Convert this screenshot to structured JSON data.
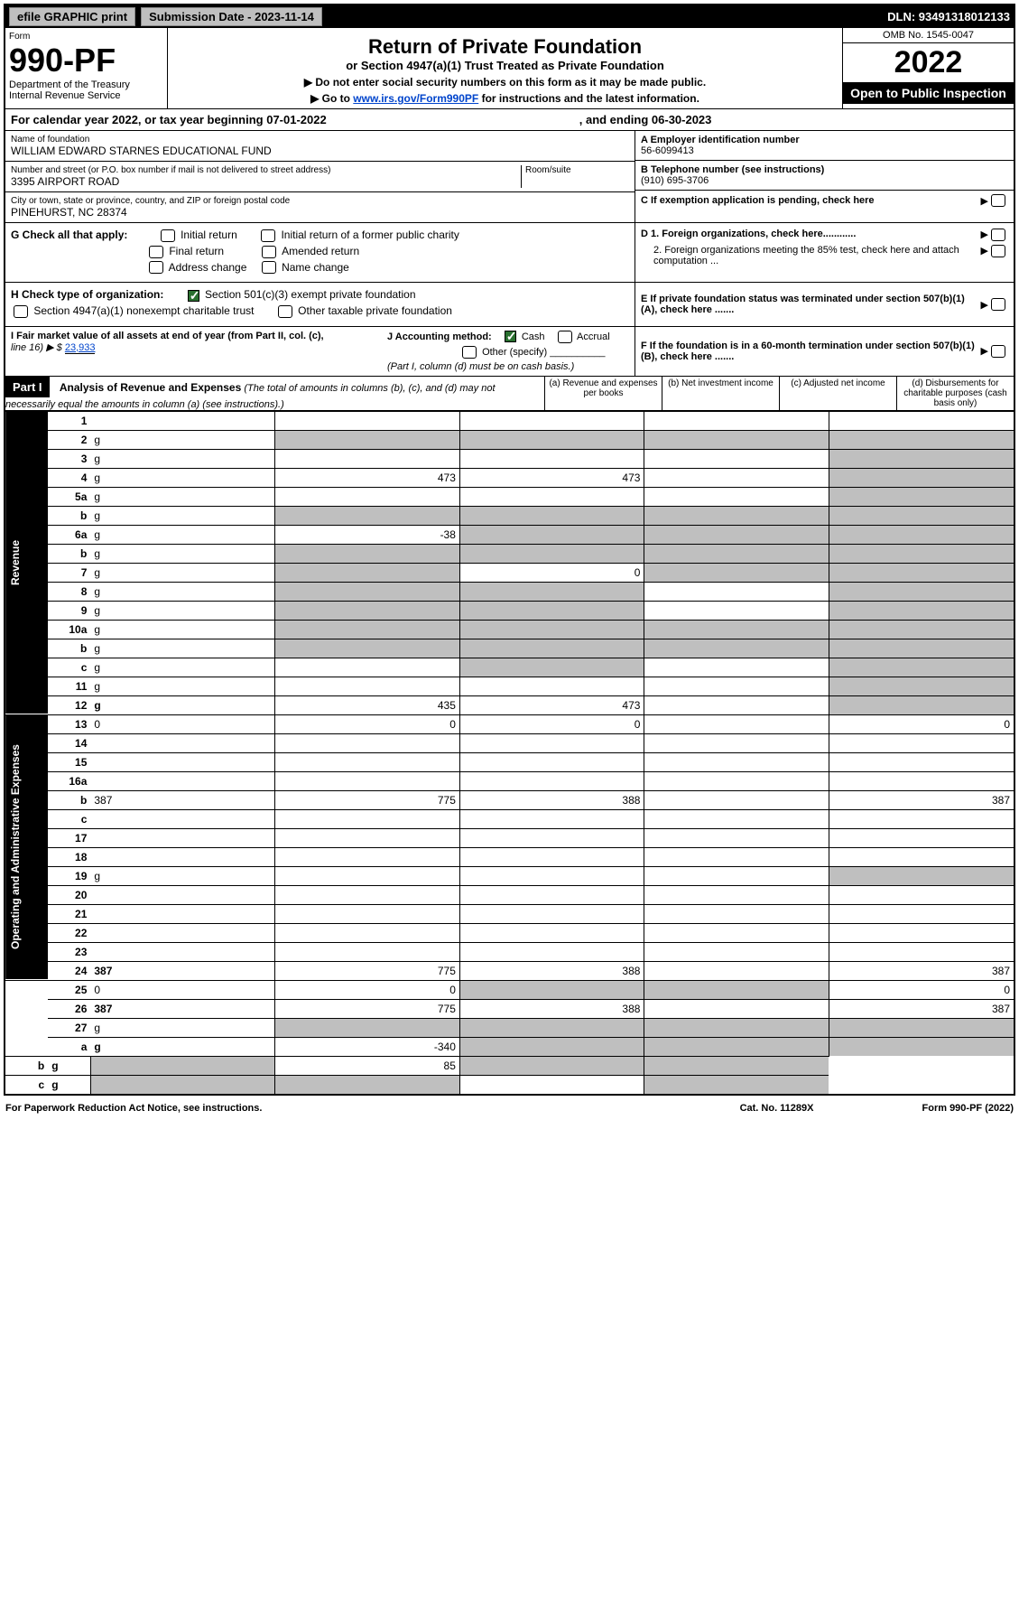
{
  "topbar": {
    "efile": "efile GRAPHIC print",
    "submission": "Submission Date - 2023-11-14",
    "dln": "DLN: 93491318012133"
  },
  "header": {
    "form_label": "Form",
    "form_num": "990-PF",
    "dept": "Department of the Treasury",
    "irs": "Internal Revenue Service",
    "title": "Return of Private Foundation",
    "subtitle": "or Section 4947(a)(1) Trust Treated as Private Foundation",
    "note1": "▶ Do not enter social security numbers on this form as it may be made public.",
    "note2_pre": "▶ Go to ",
    "note2_link": "www.irs.gov/Form990PF",
    "note2_post": " for instructions and the latest information.",
    "omb": "OMB No. 1545-0047",
    "year": "2022",
    "open": "Open to Public Inspection"
  },
  "calyear": {
    "text1": "For calendar year 2022, or tax year beginning 07-01-2022",
    "text2": ", and ending 06-30-2023"
  },
  "info": {
    "name_label": "Name of foundation",
    "name": "WILLIAM EDWARD STARNES EDUCATIONAL FUND",
    "addr_label": "Number and street (or P.O. box number if mail is not delivered to street address)",
    "addr": "3395 AIRPORT ROAD",
    "room_label": "Room/suite",
    "city_label": "City or town, state or province, country, and ZIP or foreign postal code",
    "city": "PINEHURST, NC  28374",
    "a_label": "A Employer identification number",
    "a_val": "56-6099413",
    "b_label": "B Telephone number (see instructions)",
    "b_val": "(910) 695-3706",
    "c_label": "C If exemption application is pending, check here"
  },
  "g": {
    "label": "G Check all that apply:",
    "opts": [
      "Initial return",
      "Initial return of a former public charity",
      "Final return",
      "Amended return",
      "Address change",
      "Name change"
    ]
  },
  "d": {
    "d1": "D 1. Foreign organizations, check here............",
    "d2": "2. Foreign organizations meeting the 85% test, check here and attach computation ..."
  },
  "h": {
    "label": "H Check type of organization:",
    "opt1": "Section 501(c)(3) exempt private foundation",
    "opt2": "Section 4947(a)(1) nonexempt charitable trust",
    "opt3": "Other taxable private foundation"
  },
  "e": {
    "text": "E If private foundation status was terminated under section 507(b)(1)(A), check here ......."
  },
  "i": {
    "label": "I Fair market value of all assets at end of year (from Part II, col. (c),",
    "line16": "line 16) ▶ $ ",
    "val": "23,933"
  },
  "j": {
    "label": "J Accounting method:",
    "cash": "Cash",
    "accrual": "Accrual",
    "other": "Other (specify)",
    "note": "(Part I, column (d) must be on cash basis.)"
  },
  "f": {
    "text": "F If the foundation is in a 60-month termination under section 507(b)(1)(B), check here ......."
  },
  "part1": {
    "label": "Part I",
    "title": "Analysis of Revenue and Expenses",
    "sub": " (The total of amounts in columns (b), (c), and (d) may not necessarily equal the amounts in column (a) (see instructions).)",
    "col_a": "(a)   Revenue and expenses per books",
    "col_b": "(b)   Net investment income",
    "col_c": "(c)   Adjusted net income",
    "col_d": "(d)   Disbursements for charitable purposes (cash basis only)"
  },
  "sidelabels": {
    "revenue": "Revenue",
    "expenses": "Operating and Administrative Expenses"
  },
  "lines": [
    {
      "n": "1",
      "d": "",
      "a": "",
      "b": "",
      "c": "",
      "dg": true
    },
    {
      "n": "2",
      "d": "g",
      "a": "g",
      "b": "g",
      "c": "g"
    },
    {
      "n": "3",
      "d": "g",
      "a": "",
      "b": "",
      "c": ""
    },
    {
      "n": "4",
      "d": "g",
      "a": "473",
      "b": "473",
      "c": ""
    },
    {
      "n": "5a",
      "d": "g",
      "a": "",
      "b": "",
      "c": ""
    },
    {
      "n": "b",
      "d": "g",
      "a": "g",
      "b": "g",
      "c": "g"
    },
    {
      "n": "6a",
      "d": "g",
      "a": "-38",
      "b": "g",
      "c": "g"
    },
    {
      "n": "b",
      "d": "g",
      "a": "g",
      "b": "g",
      "c": "g"
    },
    {
      "n": "7",
      "d": "g",
      "a": "g",
      "b": "0",
      "c": "g"
    },
    {
      "n": "8",
      "d": "g",
      "a": "g",
      "b": "g",
      "c": ""
    },
    {
      "n": "9",
      "d": "g",
      "a": "g",
      "b": "g",
      "c": ""
    },
    {
      "n": "10a",
      "d": "g",
      "a": "g",
      "b": "g",
      "c": "g"
    },
    {
      "n": "b",
      "d": "g",
      "a": "g",
      "b": "g",
      "c": "g"
    },
    {
      "n": "c",
      "d": "g",
      "a": "",
      "b": "g",
      "c": ""
    },
    {
      "n": "11",
      "d": "g",
      "a": "",
      "b": "",
      "c": ""
    },
    {
      "n": "12",
      "d": "g",
      "bold": true,
      "a": "435",
      "b": "473",
      "c": ""
    },
    {
      "n": "13",
      "d": "0",
      "a": "0",
      "b": "0",
      "c": ""
    },
    {
      "n": "14",
      "d": "",
      "a": "",
      "b": "",
      "c": ""
    },
    {
      "n": "15",
      "d": "",
      "a": "",
      "b": "",
      "c": ""
    },
    {
      "n": "16a",
      "d": "",
      "a": "",
      "b": "",
      "c": ""
    },
    {
      "n": "b",
      "d": "387",
      "a": "775",
      "b": "388",
      "c": ""
    },
    {
      "n": "c",
      "d": "",
      "a": "",
      "b": "",
      "c": ""
    },
    {
      "n": "17",
      "d": "",
      "a": "",
      "b": "",
      "c": ""
    },
    {
      "n": "18",
      "d": "",
      "a": "",
      "b": "",
      "c": ""
    },
    {
      "n": "19",
      "d": "g",
      "a": "",
      "b": "",
      "c": ""
    },
    {
      "n": "20",
      "d": "",
      "a": "",
      "b": "",
      "c": ""
    },
    {
      "n": "21",
      "d": "",
      "a": "",
      "b": "",
      "c": ""
    },
    {
      "n": "22",
      "d": "",
      "a": "",
      "b": "",
      "c": ""
    },
    {
      "n": "23",
      "d": "",
      "a": "",
      "b": "",
      "c": ""
    },
    {
      "n": "24",
      "d": "387",
      "bold": true,
      "a": "775",
      "b": "388",
      "c": ""
    },
    {
      "n": "25",
      "d": "0",
      "a": "0",
      "b": "g",
      "c": "g"
    },
    {
      "n": "26",
      "d": "387",
      "bold": true,
      "a": "775",
      "b": "388",
      "c": ""
    },
    {
      "n": "27",
      "d": "g",
      "a": "g",
      "b": "g",
      "c": "g"
    },
    {
      "n": "a",
      "d": "g",
      "bold": true,
      "a": "-340",
      "b": "g",
      "c": "g"
    },
    {
      "n": "b",
      "d": "g",
      "bold": true,
      "a": "g",
      "b": "85",
      "c": "g"
    },
    {
      "n": "c",
      "d": "g",
      "bold": true,
      "a": "g",
      "b": "g",
      "c": ""
    }
  ],
  "footer": {
    "left": "For Paperwork Reduction Act Notice, see instructions.",
    "mid": "Cat. No. 11289X",
    "right": "Form 990-PF (2022)"
  },
  "colors": {
    "black": "#000000",
    "grey": "#bfbfbf",
    "green": "#2a7030",
    "link": "#0044cc"
  }
}
